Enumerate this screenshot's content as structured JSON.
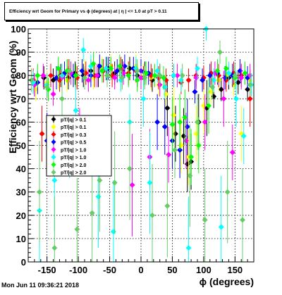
{
  "title": "Efficiency wrt Geom for Primary vs ϕ (degrees) at | η | <= 1.0 at pT > 0.11",
  "footer": "Mon Jun 11 09:36:21 2018",
  "chart_data": {
    "type": "scatter",
    "xlabel": "ϕ (degrees)",
    "ylabel": "Efficiency wrt Geom (%)",
    "xlim": [
      -180,
      180
    ],
    "ylim": [
      0,
      100
    ],
    "xticks": [
      -150,
      -100,
      -50,
      0,
      50,
      100,
      150
    ],
    "yticks": [
      0,
      10,
      20,
      30,
      40,
      50,
      60,
      70,
      80,
      90,
      100
    ],
    "grid": true,
    "legend_position": "left-middle",
    "series": [
      {
        "name": "pT/|q| > 0.1",
        "color": "#000000",
        "x": [
          -170,
          -155,
          -140,
          -128,
          -116,
          -105,
          -92,
          -80,
          -68,
          -55,
          -42,
          -30,
          -18,
          -6,
          6,
          18,
          30,
          42,
          55,
          68,
          74,
          80,
          92,
          105,
          116,
          128,
          140,
          155,
          170
        ],
        "y": [
          76,
          79,
          78,
          80,
          79,
          81,
          80,
          82,
          80,
          83,
          81,
          82,
          83,
          80,
          81,
          78,
          80,
          66,
          55,
          54,
          42,
          43,
          60,
          66,
          71,
          74,
          79,
          77,
          74
        ]
      },
      {
        "name": "pT/|q| > 0.1",
        "color": "#ffff00",
        "x": [
          -168,
          -150,
          -132,
          -118,
          -104,
          -90,
          -76,
          -62,
          -48,
          -34,
          -20,
          -8,
          4,
          16,
          28,
          40,
          52,
          64,
          76,
          88,
          100,
          112,
          124,
          136,
          148,
          160,
          174
        ],
        "y": [
          74,
          77,
          79,
          78,
          80,
          82,
          79,
          83,
          84,
          82,
          81,
          84,
          80,
          79,
          76,
          72,
          63,
          50,
          45,
          55,
          67,
          73,
          78,
          80,
          76,
          55,
          78
        ]
      },
      {
        "name": "pT/|q| > 0.3",
        "color": "#ff0000",
        "x": [
          -172,
          -158,
          -144,
          -130,
          -116,
          -102,
          -88,
          -74,
          -60,
          -46,
          -32,
          -20,
          -8,
          4,
          16,
          28,
          40,
          52,
          64,
          76,
          88,
          100,
          112,
          124,
          136,
          148,
          160,
          174
        ],
        "y": [
          78,
          55,
          80,
          78,
          82,
          79,
          81,
          80,
          82,
          80,
          83,
          81,
          82,
          79,
          80,
          79,
          78,
          80,
          77,
          78,
          80,
          79,
          81,
          80,
          78,
          81,
          80,
          70
        ]
      },
      {
        "name": "pT/|q| > 0.5",
        "color": "#0000ff",
        "x": [
          -165,
          -150,
          -135,
          -122,
          -108,
          -94,
          -80,
          -66,
          -52,
          -38,
          -26,
          -12,
          0,
          12,
          26,
          38,
          50,
          62,
          74,
          86,
          98,
          110,
          122,
          134,
          146,
          158,
          170
        ],
        "y": [
          77,
          52,
          79,
          81,
          80,
          82,
          80,
          84,
          83,
          82,
          84,
          83,
          82,
          81,
          60,
          58,
          52,
          48,
          58,
          73,
          78,
          80,
          81,
          79,
          80,
          82,
          79
        ]
      },
      {
        "name": "pT/|q| > 1.0",
        "color": "#ff00ff",
        "x": [
          -170,
          -156,
          -140,
          -126,
          -112,
          -98,
          -84,
          -70,
          -56,
          -42,
          -28,
          -14,
          0,
          14,
          30,
          44,
          58,
          72,
          88,
          102,
          118,
          132,
          146,
          160,
          174
        ],
        "y": [
          76,
          80,
          72,
          79,
          81,
          54,
          78,
          80,
          83,
          79,
          81,
          33,
          79,
          45,
          76,
          46,
          80,
          52,
          79,
          60,
          81,
          70,
          47,
          79,
          80
        ]
      },
      {
        "name": "pT/|q| > 1.0",
        "color": "#00ffff",
        "x": [
          -172,
          -162,
          -150,
          -138,
          -126,
          -114,
          -104,
          -92,
          -80,
          -68,
          -56,
          -44,
          -32,
          -18,
          -8,
          4,
          14,
          26,
          38,
          52,
          64,
          76,
          90,
          104,
          116,
          128,
          140,
          152,
          164,
          176
        ],
        "y": [
          77,
          22,
          76,
          35,
          80,
          48,
          65,
          91,
          84,
          28,
          83,
          13,
          78,
          60,
          83,
          70,
          34,
          82,
          75,
          80,
          78,
          6,
          83,
          100,
          78,
          15,
          81,
          70,
          54,
          76
        ]
      },
      {
        "name": "pT/|q| > 2.0",
        "color": "#00ff00",
        "x": [
          -165,
          -148,
          -132,
          -118,
          -104,
          -90,
          -76,
          -62,
          -48,
          -34,
          -20,
          -6,
          8,
          22,
          36,
          50,
          62,
          70,
          80,
          92,
          108,
          122,
          136,
          150,
          166
        ],
        "y": [
          80,
          74,
          83,
          82,
          80,
          79,
          85,
          82,
          83,
          84,
          80,
          78,
          81,
          80,
          79,
          59,
          60,
          62,
          45,
          50,
          67,
          82,
          83,
          79,
          81
        ]
      },
      {
        "name": "pT/|q| > 2.0",
        "color": "#66cc66",
        "x": [
          -175,
          -162,
          -150,
          -138,
          -126,
          -114,
          -102,
          -90,
          -78,
          -66,
          -54,
          -42,
          -30,
          -18,
          -6,
          6,
          18,
          30,
          42,
          54,
          66,
          78,
          90,
          102,
          114,
          126,
          138,
          150,
          162,
          174
        ],
        "y": [
          78,
          30,
          75,
          6,
          70,
          82,
          14,
          79,
          21,
          35,
          80,
          34,
          79,
          40,
          82,
          79,
          20,
          80,
          24,
          48,
          80,
          37,
          60,
          18,
          75,
          90,
          30,
          80,
          18,
          76
        ]
      }
    ]
  }
}
